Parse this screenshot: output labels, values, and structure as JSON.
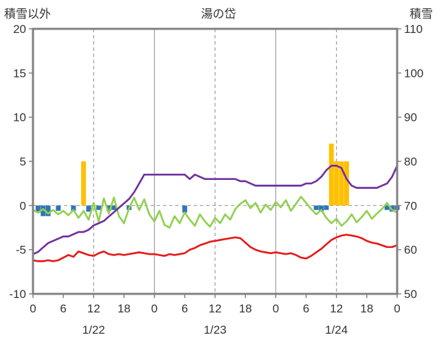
{
  "header": {
    "left_axis_title": "積雪以外",
    "title": "湯の岱",
    "right_axis_title": "積雪"
  },
  "colors": {
    "purple_line": "#7030A0",
    "red_line": "#E61919",
    "green_line": "#92D050",
    "orange_bars": "#FFC000",
    "blue_bars": "#2E75B6",
    "border": "#808080",
    "grid": "#9B9B9B",
    "text": "#333333"
  },
  "chart_data": {
    "type": "line",
    "title": "湯の岱",
    "left_axis": {
      "label": "積雪以外",
      "min": -10,
      "max": 20,
      "ticks": [
        20,
        15,
        10,
        5,
        0,
        -5,
        -10
      ]
    },
    "right_axis": {
      "label": "積雪",
      "min": 50,
      "max": 110,
      "ticks": [
        110,
        100,
        90,
        80,
        70,
        60,
        50
      ]
    },
    "x_axis": {
      "hours_span": 72,
      "tick_step": 6,
      "tick_labels": [
        "0",
        "6",
        "12",
        "18",
        "0",
        "6",
        "12",
        "18",
        "0",
        "6",
        "12",
        "18",
        "0"
      ],
      "day_labels": [
        "1/22",
        "1/23",
        "1/24"
      ],
      "day_label_hours": [
        12,
        36,
        60
      ],
      "gridlines_solid_hours": [
        24,
        48
      ],
      "gridlines_dashed_hours": [
        12,
        36,
        60
      ],
      "zero_gridline": true
    },
    "series": [
      {
        "name": "orange-bars",
        "type": "bar",
        "axis": "left",
        "color": "#FFC000",
        "values": [
          0,
          0,
          0,
          0,
          0,
          0,
          0,
          0,
          0,
          0,
          5,
          0,
          0,
          0,
          0,
          0,
          0,
          0,
          0,
          0,
          0,
          0,
          0,
          0,
          0,
          0,
          0,
          0,
          0,
          0,
          0,
          0,
          0,
          0,
          0,
          0,
          0,
          0,
          0,
          0,
          0,
          0,
          0,
          0,
          0,
          0,
          0,
          0,
          0,
          0,
          0,
          0,
          0,
          0,
          0,
          0,
          0,
          0,
          0,
          7,
          5,
          5,
          5,
          0,
          0,
          0,
          0,
          0,
          0,
          0,
          0,
          0,
          0
        ]
      },
      {
        "name": "blue-bars",
        "type": "bar",
        "axis": "left",
        "color": "#2E75B6",
        "values": [
          0,
          -0.8,
          -1.2,
          -1.2,
          0,
          -0.6,
          0,
          0,
          -0.6,
          0,
          0,
          -0.7,
          0,
          -0.5,
          0,
          -0.6,
          -0.5,
          0,
          0,
          -0.5,
          0,
          0,
          0,
          0,
          0,
          0,
          0,
          0,
          0,
          0,
          -0.8,
          0,
          0,
          0,
          0,
          0,
          0,
          0,
          0,
          0,
          0,
          0,
          0,
          0,
          0,
          0,
          0,
          0,
          0,
          0,
          0,
          0,
          0,
          0,
          0,
          0,
          -0.5,
          -0.7,
          -0.5,
          0,
          0,
          0,
          0,
          0,
          0,
          0,
          0,
          0,
          0,
          0,
          -0.5,
          -0.7,
          -0.5
        ]
      },
      {
        "name": "green-line",
        "type": "line",
        "axis": "left",
        "color": "#92D050",
        "values": [
          -0.5,
          -0.8,
          -0.4,
          -0.9,
          -0.5,
          -1.0,
          -0.6,
          -1.1,
          -0.5,
          -1.4,
          -0.6,
          -1.6,
          0.3,
          -1.8,
          0.8,
          -0.9,
          0.9,
          -1.2,
          -2.0,
          -0.3,
          0.9,
          -0.5,
          0.7,
          -1.0,
          -1.8,
          -0.6,
          -2.2,
          -2.5,
          -1.2,
          -2.0,
          -0.8,
          -1.6,
          -2.3,
          -1.0,
          -1.8,
          -2.4,
          -1.4,
          -2.0,
          -1.0,
          -1.6,
          -0.4,
          0.2,
          0.6,
          -0.3,
          0.3,
          -0.8,
          0.1,
          -0.5,
          0.4,
          -0.2,
          0.6,
          -0.6,
          0.2,
          1.0,
          0.3,
          -0.4,
          -1.0,
          -0.5,
          -1.4,
          -2.0,
          -1.5,
          -2.3,
          -1.8,
          -1.0,
          -1.9,
          -1.3,
          -0.6,
          -1.5,
          -0.9,
          -0.4,
          0.3,
          -0.5,
          -0.8
        ]
      },
      {
        "name": "red-line",
        "type": "line",
        "axis": "left",
        "color": "#E61919",
        "values": [
          -6.2,
          -6.3,
          -6.3,
          -6.2,
          -6.3,
          -6.2,
          -5.9,
          -5.6,
          -5.8,
          -5.2,
          -5.4,
          -5.6,
          -5.7,
          -5.4,
          -5.2,
          -5.5,
          -5.6,
          -5.5,
          -5.6,
          -5.5,
          -5.4,
          -5.3,
          -5.4,
          -5.5,
          -5.5,
          -5.6,
          -5.7,
          -5.5,
          -5.6,
          -5.5,
          -5.4,
          -5.0,
          -4.8,
          -4.5,
          -4.3,
          -4.1,
          -4.0,
          -3.9,
          -3.8,
          -3.7,
          -3.6,
          -3.7,
          -4.2,
          -4.7,
          -5.0,
          -5.2,
          -5.3,
          -5.4,
          -5.3,
          -5.4,
          -5.5,
          -5.4,
          -5.6,
          -5.9,
          -6.0,
          -5.7,
          -5.3,
          -4.9,
          -4.4,
          -3.9,
          -3.6,
          -3.4,
          -3.3,
          -3.4,
          -3.5,
          -3.7,
          -4.0,
          -4.2,
          -4.3,
          -4.5,
          -4.7,
          -4.7,
          -4.5
        ]
      },
      {
        "name": "purple-line",
        "type": "line",
        "axis": "right",
        "color": "#7030A0",
        "values": [
          59,
          59.5,
          60.5,
          61.5,
          62,
          62.5,
          63,
          63,
          63.5,
          64,
          64,
          64.5,
          65.5,
          66,
          66.5,
          67.5,
          68.5,
          69.5,
          70.5,
          71.5,
          73,
          75,
          77,
          77,
          77,
          77,
          77,
          77,
          77,
          77,
          77,
          76,
          77,
          76.5,
          76,
          76,
          76,
          76,
          76,
          76,
          76,
          75.5,
          75.5,
          75,
          74.5,
          74.5,
          74.5,
          74.5,
          74.5,
          74.5,
          74.5,
          74.5,
          74.5,
          74.5,
          75,
          75,
          75.5,
          76.5,
          78,
          79,
          79,
          78.5,
          76,
          74.5,
          74,
          74,
          74,
          74,
          74,
          74.5,
          75,
          76.5,
          79
        ]
      }
    ]
  }
}
